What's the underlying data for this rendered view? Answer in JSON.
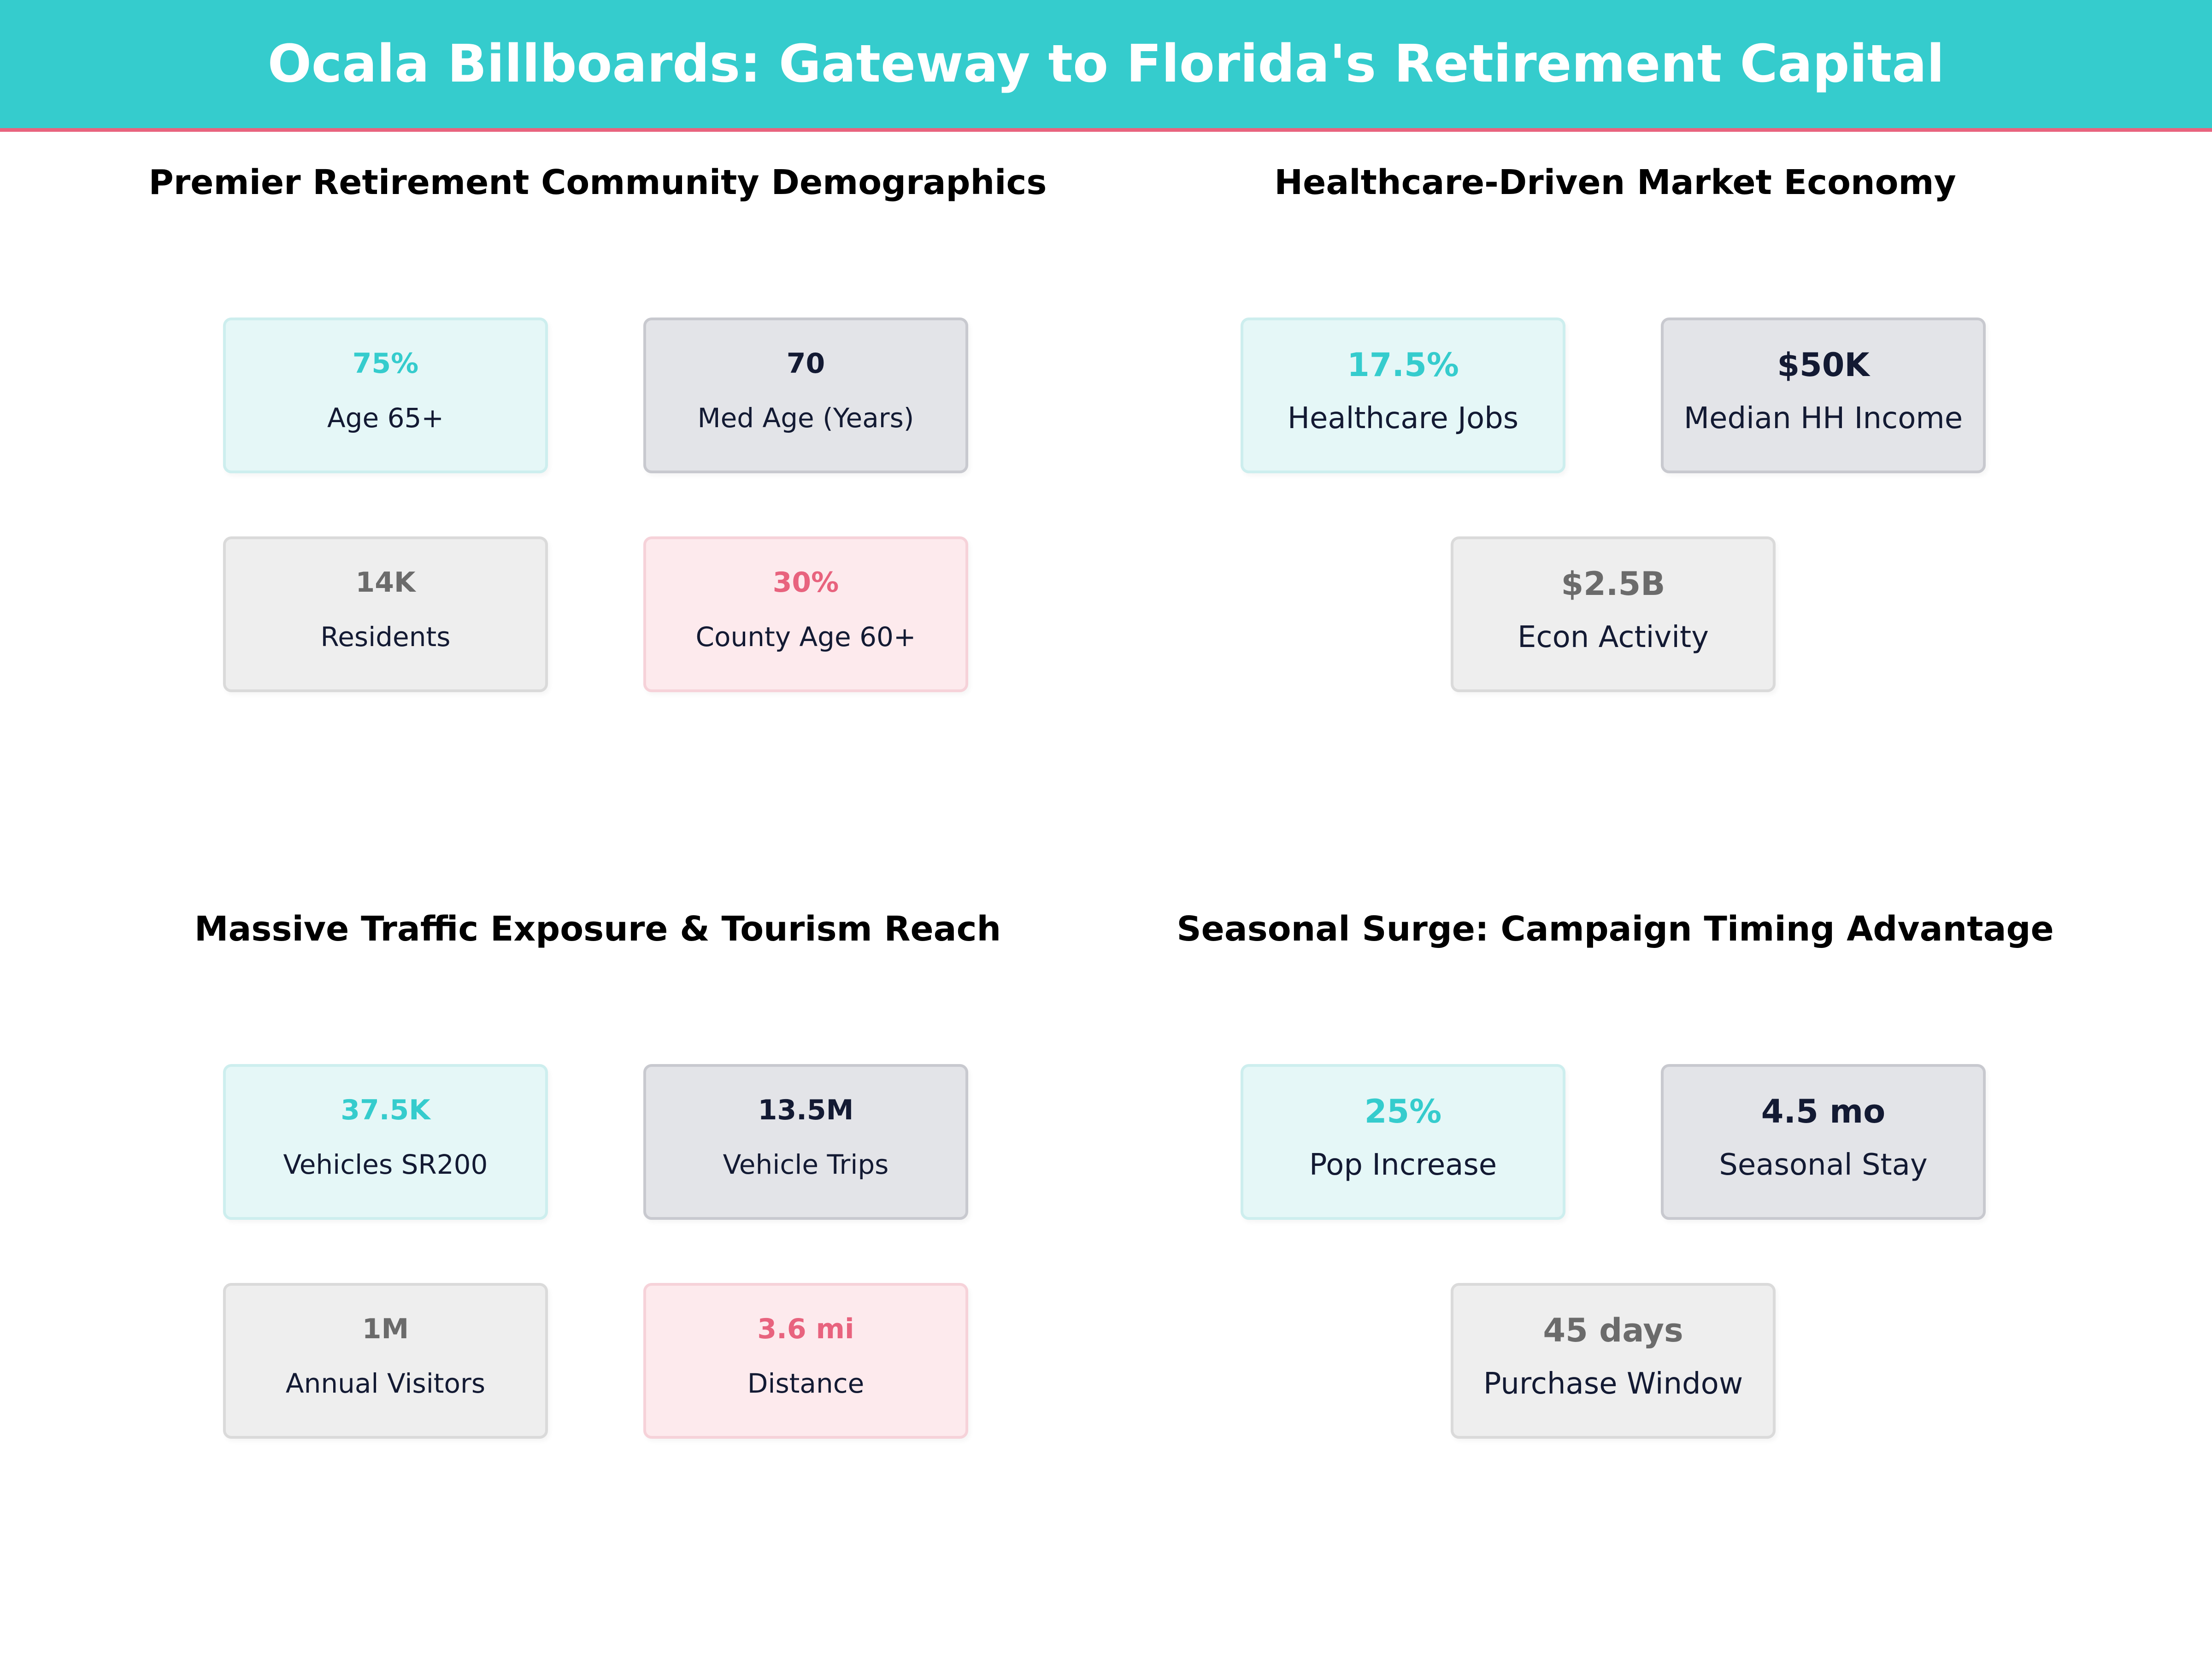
{
  "header": {
    "title": "Ocala Billboards: Gateway to Florida's Retirement Capital"
  },
  "colors": {
    "banner": "#35cccd",
    "accent": "#e8637e",
    "teal": "#35cccd",
    "navy": "#131a33",
    "gray": "#6b6b6b",
    "pink": "#e8637e"
  },
  "panels": [
    {
      "title": "Premier Retirement Community Demographics",
      "stats": [
        {
          "value": "75%",
          "label": "Age 65+"
        },
        {
          "value": "70",
          "label": "Med Age (Years)"
        },
        {
          "value": "14K",
          "label": "Residents"
        },
        {
          "value": "30%",
          "label": "County Age 60+"
        }
      ]
    },
    {
      "title": "Healthcare-Driven Market Economy",
      "stats": [
        {
          "value": "17.5%",
          "label": "Healthcare Jobs"
        },
        {
          "value": "$50K",
          "label": "Median HH Income"
        },
        {
          "value": "$2.5B",
          "label": "Econ Activity"
        }
      ]
    },
    {
      "title": "Massive Traffic Exposure & Tourism Reach",
      "stats": [
        {
          "value": "37.5K",
          "label": "Vehicles SR200"
        },
        {
          "value": "13.5M",
          "label": "Vehicle Trips"
        },
        {
          "value": "1M",
          "label": "Annual Visitors"
        },
        {
          "value": "3.6 mi",
          "label": "Distance"
        }
      ]
    },
    {
      "title": "Seasonal Surge: Campaign Timing Advantage",
      "stats": [
        {
          "value": "25%",
          "label": "Pop Increase"
        },
        {
          "value": "4.5 mo",
          "label": "Seasonal Stay"
        },
        {
          "value": "45 days",
          "label": "Purchase Window"
        }
      ]
    }
  ]
}
